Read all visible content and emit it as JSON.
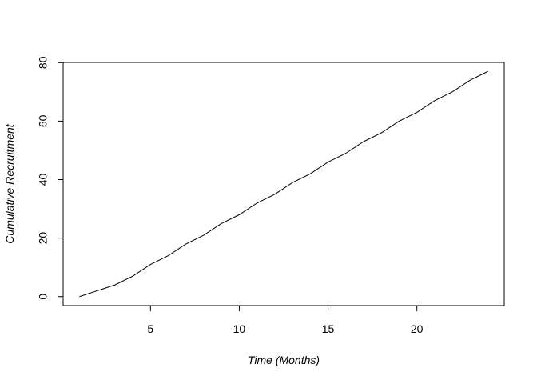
{
  "chart_data": {
    "type": "line",
    "x_label": "Time (Months)",
    "y_label": "Cumulative Recruitment",
    "x": [
      1,
      2,
      3,
      4,
      5,
      6,
      7,
      8,
      9,
      10,
      11,
      12,
      13,
      14,
      15,
      16,
      17,
      18,
      19,
      20,
      21,
      22,
      23,
      24
    ],
    "values": [
      0,
      2,
      4,
      7,
      11,
      14,
      18,
      21,
      25,
      28,
      32,
      35,
      39,
      42,
      46,
      49,
      53,
      56,
      60,
      63,
      67,
      70,
      74,
      77
    ],
    "color": "#000000",
    "xlim": [
      0.08,
      24.92
    ],
    "xticks": [
      5,
      10,
      15,
      20
    ],
    "ylim": [
      -3.08,
      80.08
    ],
    "yticks": [
      0,
      20,
      40,
      60,
      80
    ]
  }
}
